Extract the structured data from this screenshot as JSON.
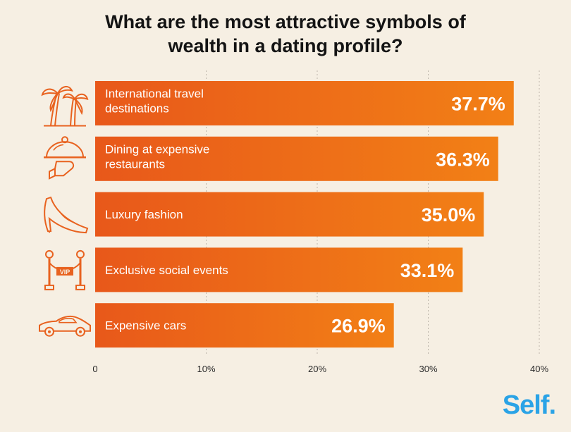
{
  "title_lines": [
    "What are the most attractive symbols of",
    "wealth in a dating profile?"
  ],
  "brand": "Self.",
  "colors": {
    "background": "#f6efe3",
    "bar_left": "#e8581a",
    "bar_right": "#f28016",
    "icon": "#e8621f",
    "brand": "#2aa3e6",
    "grid": "#bdb6ab"
  },
  "chart_data": {
    "type": "bar",
    "orientation": "horizontal",
    "title": "What are the most attractive symbols of wealth in a dating profile?",
    "categories": [
      "International travel destinations",
      "Dining at expensive restaurants",
      "Luxury fashion",
      "Exclusive social events",
      "Expensive cars"
    ],
    "category_lines": [
      [
        "International travel",
        "destinations"
      ],
      [
        "Dining at expensive",
        "restaurants"
      ],
      [
        "Luxury fashion"
      ],
      [
        "Exclusive social events"
      ],
      [
        "Expensive cars"
      ]
    ],
    "icons": [
      "palm-trees-icon",
      "cloche-icon",
      "high-heel-icon",
      "vip-rope-icon",
      "sports-car-icon"
    ],
    "values": [
      37.7,
      36.3,
      35.0,
      33.1,
      26.9
    ],
    "value_labels": [
      "37.7%",
      "36.3%",
      "35.0%",
      "33.1%",
      "26.9%"
    ],
    "xlim": [
      0,
      40
    ],
    "xticks": [
      0,
      10,
      20,
      30,
      40
    ],
    "xtick_labels": [
      "0",
      "10%",
      "20%",
      "30%",
      "40%"
    ],
    "grid": true
  }
}
